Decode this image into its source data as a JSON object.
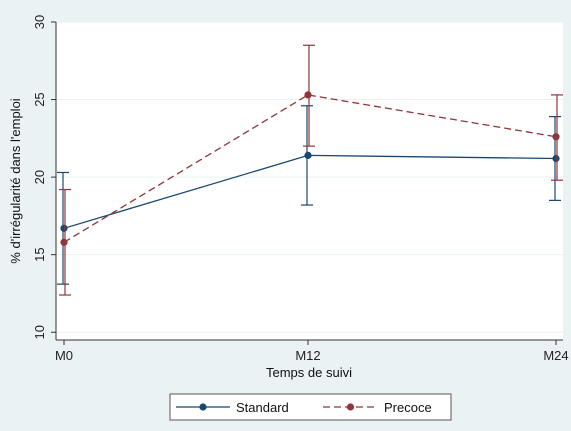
{
  "chart_data": {
    "type": "line",
    "xlabel": "Temps de suivi",
    "ylabel": "% d'irrégularité dans l'emploi",
    "categories": [
      "M0",
      "M12",
      "M24"
    ],
    "ylim": [
      9.5,
      30
    ],
    "yticks": [
      10,
      15,
      20,
      25,
      30
    ],
    "grid": true,
    "legend_position": "bottom",
    "series": [
      {
        "name": "Standard",
        "color": "#1a476f",
        "line_style": "solid",
        "values": [
          16.7,
          21.4,
          21.2
        ],
        "ci_low": [
          13.1,
          18.2,
          18.5
        ],
        "ci_high": [
          20.3,
          24.6,
          23.9
        ]
      },
      {
        "name": "Precoce",
        "color": "#90353b",
        "line_style": "dashed",
        "values": [
          15.8,
          25.3,
          22.6
        ],
        "ci_low": [
          12.4,
          22.0,
          19.8
        ],
        "ci_high": [
          19.2,
          28.5,
          25.3
        ]
      }
    ]
  }
}
